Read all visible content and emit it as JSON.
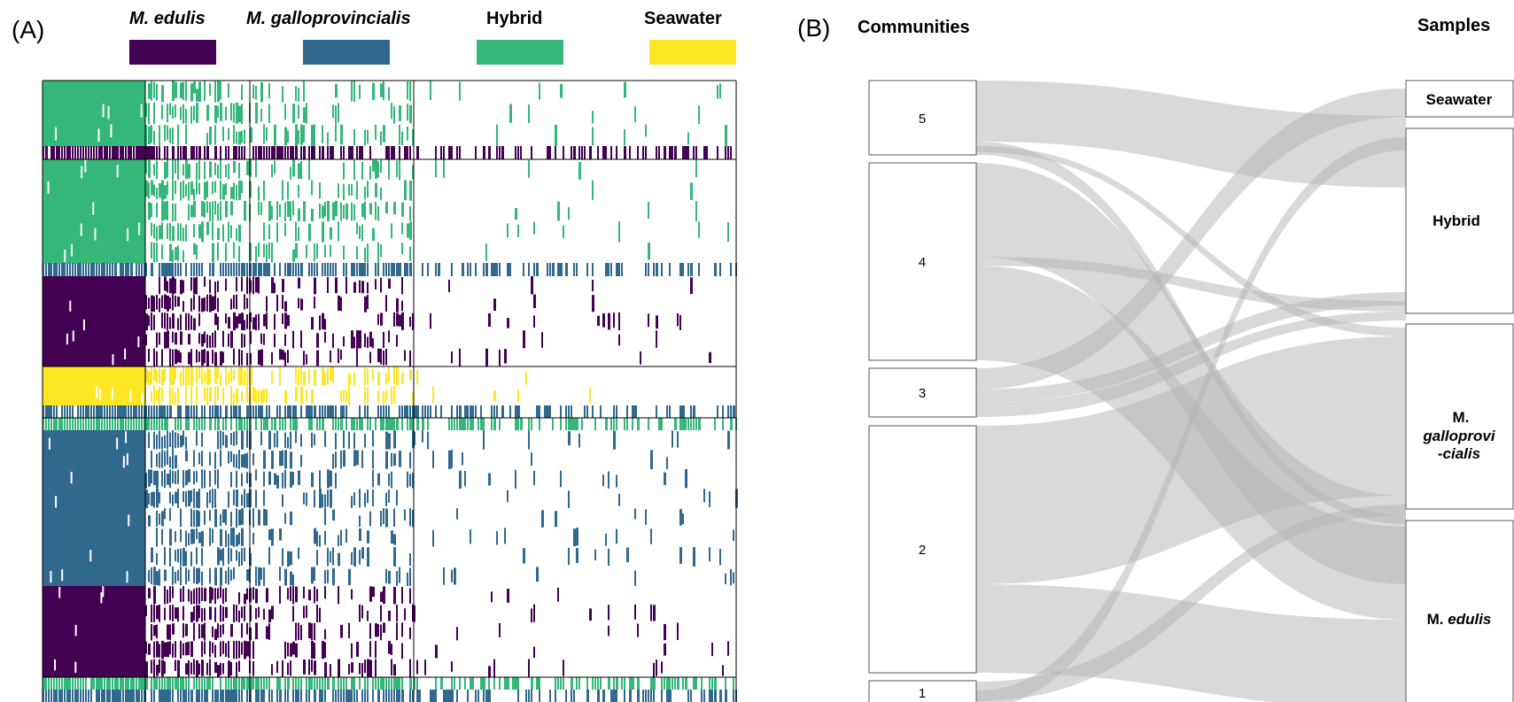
{
  "panel_a": {
    "label": "(A)",
    "legend": [
      {
        "label": "M. edulis",
        "color": "#440154",
        "italic": true
      },
      {
        "label": "M. galloprovincialis",
        "color": "#31688e",
        "italic": true
      },
      {
        "label": "Hybrid",
        "color": "#35b779",
        "italic": false
      },
      {
        "label": "Seawater",
        "color": "#fde725",
        "italic": false
      }
    ]
  },
  "panel_b": {
    "label": "(B)",
    "communities_header": "Communities",
    "samples_header": "Samples",
    "communities": [
      "5",
      "4",
      "3",
      "2",
      "1"
    ],
    "samples": {
      "seawater": "Seawater",
      "hybrid": "Hybrid",
      "gallo_line1": "M.",
      "gallo_line2": "galloprovi",
      "gallo_line3": "-cialis",
      "edulis_prefix": "M.",
      "edulis_italic": "edulis"
    }
  }
}
